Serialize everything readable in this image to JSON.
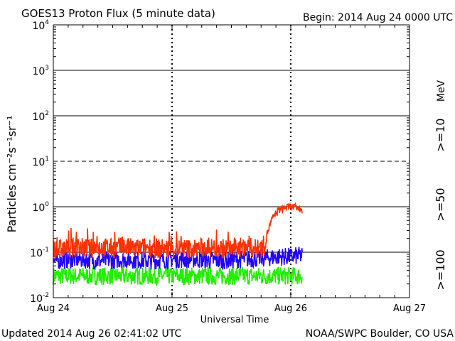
{
  "chart_data": {
    "type": "line",
    "title": "GOES13 Proton Flux (5 minute data)",
    "begin_text": "Begin: 2014 Aug 24 0000 UTC",
    "xlabel": "Universal Time",
    "ylabel": "Particles cm⁻²s⁻¹sr⁻¹",
    "y_scale": "log",
    "ylim": [
      0.01,
      10000
    ],
    "y_ticks": [
      {
        "base": "10",
        "exp": "-2",
        "value": 0.01
      },
      {
        "base": "10",
        "exp": "-1",
        "value": 0.1
      },
      {
        "base": "10",
        "exp": "0",
        "value": 1
      },
      {
        "base": "10",
        "exp": "1",
        "value": 10
      },
      {
        "base": "10",
        "exp": "2",
        "value": 100
      },
      {
        "base": "10",
        "exp": "3",
        "value": 1000
      },
      {
        "base": "10",
        "exp": "4",
        "value": 10000
      }
    ],
    "x_range_days": [
      0,
      3
    ],
    "x_ticks": [
      {
        "label": "Aug 24",
        "day": 0
      },
      {
        "label": "Aug 25",
        "day": 1
      },
      {
        "label": "Aug 26",
        "day": 2
      },
      {
        "label": "Aug 27",
        "day": 3
      }
    ],
    "solid_gridlines": [
      1000,
      100,
      1,
      0.1
    ],
    "dashed_gridlines": [
      10
    ],
    "day_dividers": [
      1,
      2
    ],
    "units_label": "MeV",
    "series": [
      {
        "name": ">=10",
        "color": "#ff3000",
        "data": [
          [
            0.0,
            0.12
          ],
          [
            0.1,
            0.12
          ],
          [
            0.2,
            0.13
          ],
          [
            0.3,
            0.12
          ],
          [
            0.4,
            0.13
          ],
          [
            0.5,
            0.12
          ],
          [
            0.6,
            0.13
          ],
          [
            0.7,
            0.12
          ],
          [
            0.8,
            0.13
          ],
          [
            0.9,
            0.12
          ],
          [
            1.0,
            0.12
          ],
          [
            1.1,
            0.12
          ],
          [
            1.2,
            0.12
          ],
          [
            1.3,
            0.13
          ],
          [
            1.4,
            0.12
          ],
          [
            1.5,
            0.12
          ],
          [
            1.6,
            0.13
          ],
          [
            1.65,
            0.13
          ],
          [
            1.7,
            0.12
          ],
          [
            1.75,
            0.12
          ],
          [
            1.78,
            0.15
          ],
          [
            1.8,
            0.25
          ],
          [
            1.83,
            0.45
          ],
          [
            1.86,
            0.65
          ],
          [
            1.9,
            0.85
          ],
          [
            1.95,
            0.95
          ],
          [
            2.0,
            1.0
          ],
          [
            2.05,
            0.95
          ],
          [
            2.1,
            0.85
          ]
        ]
      },
      {
        "name": ">=50",
        "color": "#2200ff",
        "data": [
          [
            0.0,
            0.065
          ],
          [
            0.2,
            0.07
          ],
          [
            0.4,
            0.065
          ],
          [
            0.6,
            0.07
          ],
          [
            0.8,
            0.065
          ],
          [
            1.0,
            0.07
          ],
          [
            1.2,
            0.07
          ],
          [
            1.4,
            0.065
          ],
          [
            1.6,
            0.07
          ],
          [
            1.8,
            0.075
          ],
          [
            1.9,
            0.08
          ],
          [
            2.0,
            0.08
          ],
          [
            2.1,
            0.085
          ]
        ]
      },
      {
        "name": ">=100",
        "color": "#22ee00",
        "data": [
          [
            0.0,
            0.03
          ],
          [
            0.2,
            0.03
          ],
          [
            0.4,
            0.03
          ],
          [
            0.6,
            0.03
          ],
          [
            0.8,
            0.03
          ],
          [
            1.0,
            0.03
          ],
          [
            1.2,
            0.03
          ],
          [
            1.4,
            0.03
          ],
          [
            1.6,
            0.03
          ],
          [
            1.8,
            0.03
          ],
          [
            2.0,
            0.03
          ],
          [
            2.1,
            0.03
          ]
        ]
      }
    ]
  },
  "footer": {
    "updated": "Updated 2014 Aug 26 02:41:02 UTC",
    "credit": "NOAA/SWPC Boulder, CO USA"
  }
}
